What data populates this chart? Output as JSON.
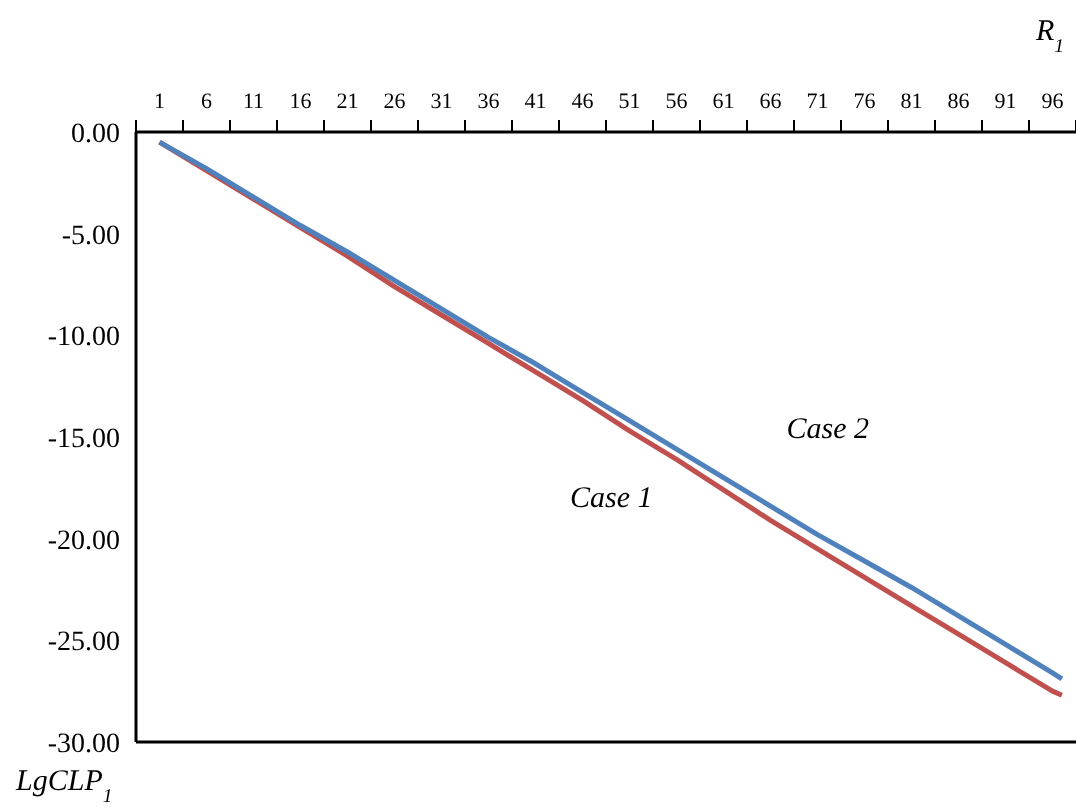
{
  "chart_data": {
    "type": "line",
    "xlabel": "R$_{1}$",
    "ylabel": "LgCLP$_{1}$",
    "x": [
      1,
      6,
      11,
      16,
      21,
      26,
      31,
      36,
      41,
      46,
      51,
      56,
      61,
      66,
      71,
      76,
      81,
      86,
      91,
      96,
      97
    ],
    "xlim": [
      -1.5,
      98.5
    ],
    "xticks": [
      {
        "value": -1.5,
        "label": null
      },
      1,
      {
        "value": 3.5,
        "label": null
      },
      6,
      {
        "value": 8.5,
        "label": null
      },
      11,
      {
        "value": 13.5,
        "label": null
      },
      16,
      {
        "value": 18.5,
        "label": null
      },
      21,
      {
        "value": 23.5,
        "label": null
      },
      26,
      {
        "value": 28.5,
        "label": null
      },
      31,
      {
        "value": 33.5,
        "label": null
      },
      36,
      {
        "value": 38.5,
        "label": null
      },
      41,
      {
        "value": 43.5,
        "label": null
      },
      46,
      {
        "value": 48.5,
        "label": null
      },
      51,
      {
        "value": 53.5,
        "label": null
      },
      56,
      {
        "value": 58.5,
        "label": null
      },
      61,
      {
        "value": 63.5,
        "label": null
      },
      66,
      {
        "value": 68.5,
        "label": null
      },
      71,
      {
        "value": 73.5,
        "label": null
      },
      76,
      {
        "value": 78.5,
        "label": null
      },
      81,
      {
        "value": 83.5,
        "label": null
      },
      86,
      {
        "value": 88.5,
        "label": null
      },
      91,
      {
        "value": 93.5,
        "label": null
      },
      96,
      {
        "value": 98.5,
        "label": null
      }
    ],
    "ylim": [
      -30,
      0
    ],
    "yticks": [
      {
        "value": 0,
        "label": "0.00"
      },
      {
        "value": -5,
        "label": "-5.00"
      },
      {
        "value": -10,
        "label": "-10.00"
      },
      {
        "value": -15,
        "label": "-15.00"
      },
      {
        "value": -20,
        "label": "-20.00"
      },
      {
        "value": -25,
        "label": "-25.00"
      },
      {
        "value": -30,
        "label": "-30.00"
      }
    ],
    "grid": false,
    "legend": false,
    "marker": "none",
    "line_style": "solid",
    "series": [
      {
        "name": "Case 1",
        "color": "#c0504d",
        "values": [
          -0.5,
          -1.9,
          -3.3,
          -4.7,
          -6.1,
          -7.6,
          -9.0,
          -10.4,
          -11.8,
          -13.2,
          -14.7,
          -16.1,
          -17.6,
          -19.1,
          -20.5,
          -21.9,
          -23.3,
          -24.7,
          -26.1,
          -27.5,
          -27.7
        ]
      },
      {
        "name": "Case 2",
        "color": "#4f81bd",
        "values": [
          -0.5,
          -1.8,
          -3.2,
          -4.6,
          -5.9,
          -7.3,
          -8.7,
          -10.1,
          -11.4,
          -12.8,
          -14.2,
          -15.6,
          -17.0,
          -18.4,
          -19.8,
          -21.1,
          -22.4,
          -23.8,
          -25.2,
          -26.6,
          -26.9
        ]
      }
    ]
  }
}
